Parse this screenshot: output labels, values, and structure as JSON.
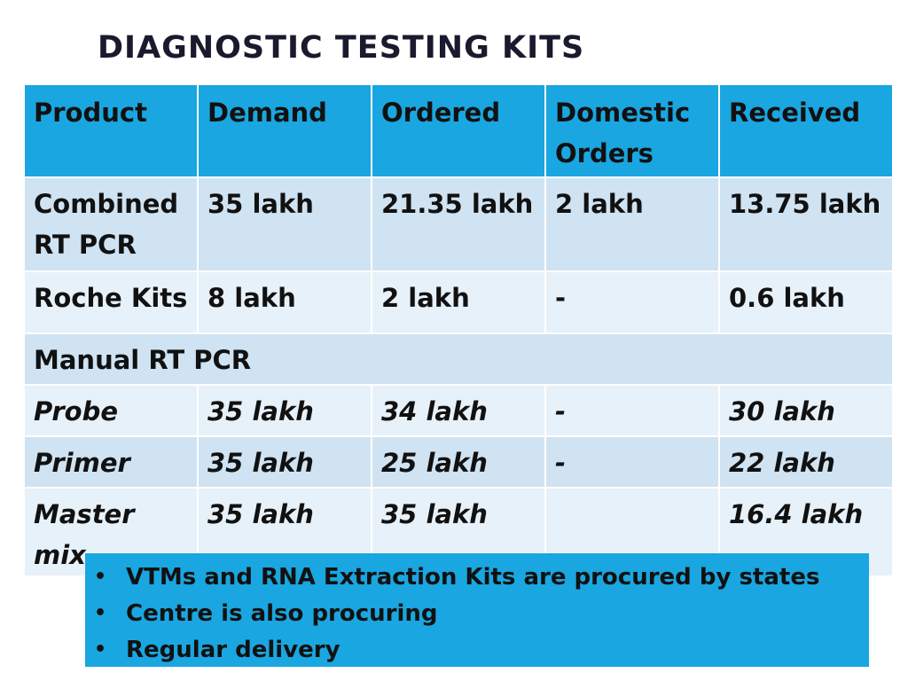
{
  "slide": {
    "title": "DIAGNOSTIC TESTING KITS"
  },
  "table": {
    "headers": [
      "Product",
      "Demand",
      "Ordered",
      "Domestic Orders",
      "Received"
    ],
    "rows": [
      [
        "Combined RT PCR",
        "35 lakh",
        "21.35 lakh",
        "2 lakh",
        "13.75 lakh"
      ],
      [
        "Roche Kits",
        "8 lakh",
        "2 lakh",
        "-",
        "0.6 lakh"
      ]
    ],
    "section_label": "Manual RT PCR",
    "section_rows": [
      [
        "Probe",
        "35 lakh",
        "34 lakh",
        "-",
        "30 lakh"
      ],
      [
        "Primer",
        "35 lakh",
        "25 lakh",
        "-",
        "22 lakh"
      ],
      [
        "Master mix",
        "35 lakh",
        "35 lakh",
        "",
        "16.4 lakh"
      ]
    ]
  },
  "notes": {
    "items": [
      "VTMs and RNA Extraction Kits are procured by states",
      "Centre is also procuring",
      "Regular delivery"
    ]
  },
  "colors": {
    "header_fill": "#1aa6e0",
    "row_dark": "#cfe3f2",
    "row_light": "#e7f1f9",
    "notes_fill": "#1aa6e0"
  }
}
